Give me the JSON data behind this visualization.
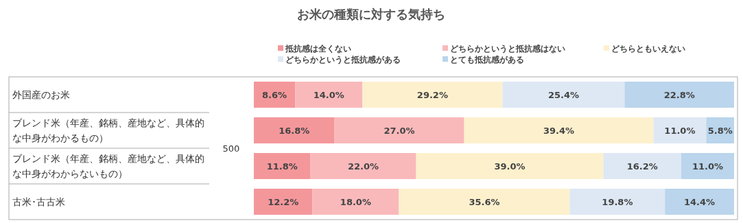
{
  "chart_data": {
    "type": "bar",
    "orientation": "horizontal",
    "stacked": true,
    "title": "お米の種類に対する気持ち",
    "categories": [
      "外国産のお米",
      "ブレンド米（年産、銘柄、産地など、具体的な中身がわかるもの）",
      "ブレンド米（年産、銘柄、産地など、具体的な中身がわからないもの）",
      "古米･古古米"
    ],
    "series": [
      {
        "name": "抵抗感は全くない",
        "color": "#f4979b",
        "values": [
          8.6,
          16.8,
          11.8,
          12.2
        ],
        "value_labels": [
          "8.6%",
          "16.8%",
          "11.8%",
          "12.2%"
        ]
      },
      {
        "name": "どちらかというと抵抗感はない",
        "color": "#f9b9bb",
        "values": [
          14.0,
          27.0,
          22.0,
          18.0
        ],
        "value_labels": [
          "14.0%",
          "27.0%",
          "22.0%",
          "18.0%"
        ]
      },
      {
        "name": "どちらともいえない",
        "color": "#fdf0cd",
        "values": [
          29.2,
          39.4,
          39.0,
          35.6
        ],
        "value_labels": [
          "29.2%",
          "39.4%",
          "39.0%",
          "35.6%"
        ]
      },
      {
        "name": "どちらかというと抵抗感がある",
        "color": "#dee8f4",
        "values": [
          25.4,
          11.0,
          16.2,
          19.8
        ],
        "value_labels": [
          "25.4%",
          "11.0%",
          "16.2%",
          "19.8%"
        ]
      },
      {
        "name": "とても抵抗感がある",
        "color": "#bad5ec",
        "values": [
          22.8,
          5.8,
          11.0,
          14.4
        ],
        "value_labels": [
          "22.8%",
          "5.8%",
          "11.0%",
          "14.4%"
        ]
      }
    ],
    "xlim": [
      0,
      100
    ],
    "tick_labels": "y",
    "legend": "top",
    "annotations": [
      "500"
    ]
  }
}
